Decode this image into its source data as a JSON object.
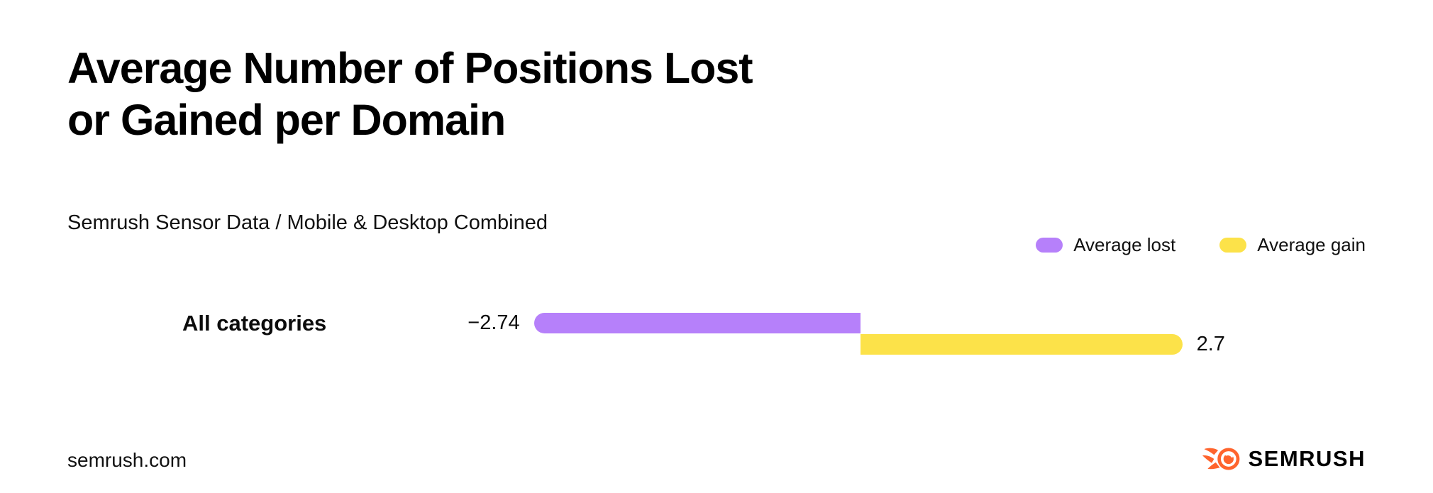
{
  "header": {
    "title_line1": "Average Number of Positions Lost",
    "title_line2": "or Gained per Domain",
    "subtitle": "Semrush Sensor Data / Mobile & Desktop Combined"
  },
  "legend": {
    "items": [
      {
        "label": "Average lost",
        "color": "#B680FA"
      },
      {
        "label": "Average gain",
        "color": "#FCE249"
      }
    ]
  },
  "chart_data": {
    "type": "bar",
    "variant": "horizontal-diverging",
    "categories": [
      "All categories"
    ],
    "series": [
      {
        "name": "Average lost",
        "color": "#B680FA",
        "values": [
          -2.74
        ],
        "value_labels": [
          "−2.74"
        ]
      },
      {
        "name": "Average gain",
        "color": "#FCE249",
        "values": [
          2.7
        ],
        "value_labels": [
          "2.7"
        ]
      }
    ],
    "title": "Average Number of Positions Lost or Gained per Domain",
    "subtitle": "Semrush Sensor Data / Mobile & Desktop Combined",
    "xlabel": "",
    "ylabel": "",
    "xlim": [
      -3,
      3
    ],
    "grid": false,
    "legend_position": "top-right",
    "value_label_position": "outside-ends"
  },
  "footer": {
    "site": "semrush.com",
    "brand": "SEMRUSH",
    "brand_color": "#FF642D"
  }
}
